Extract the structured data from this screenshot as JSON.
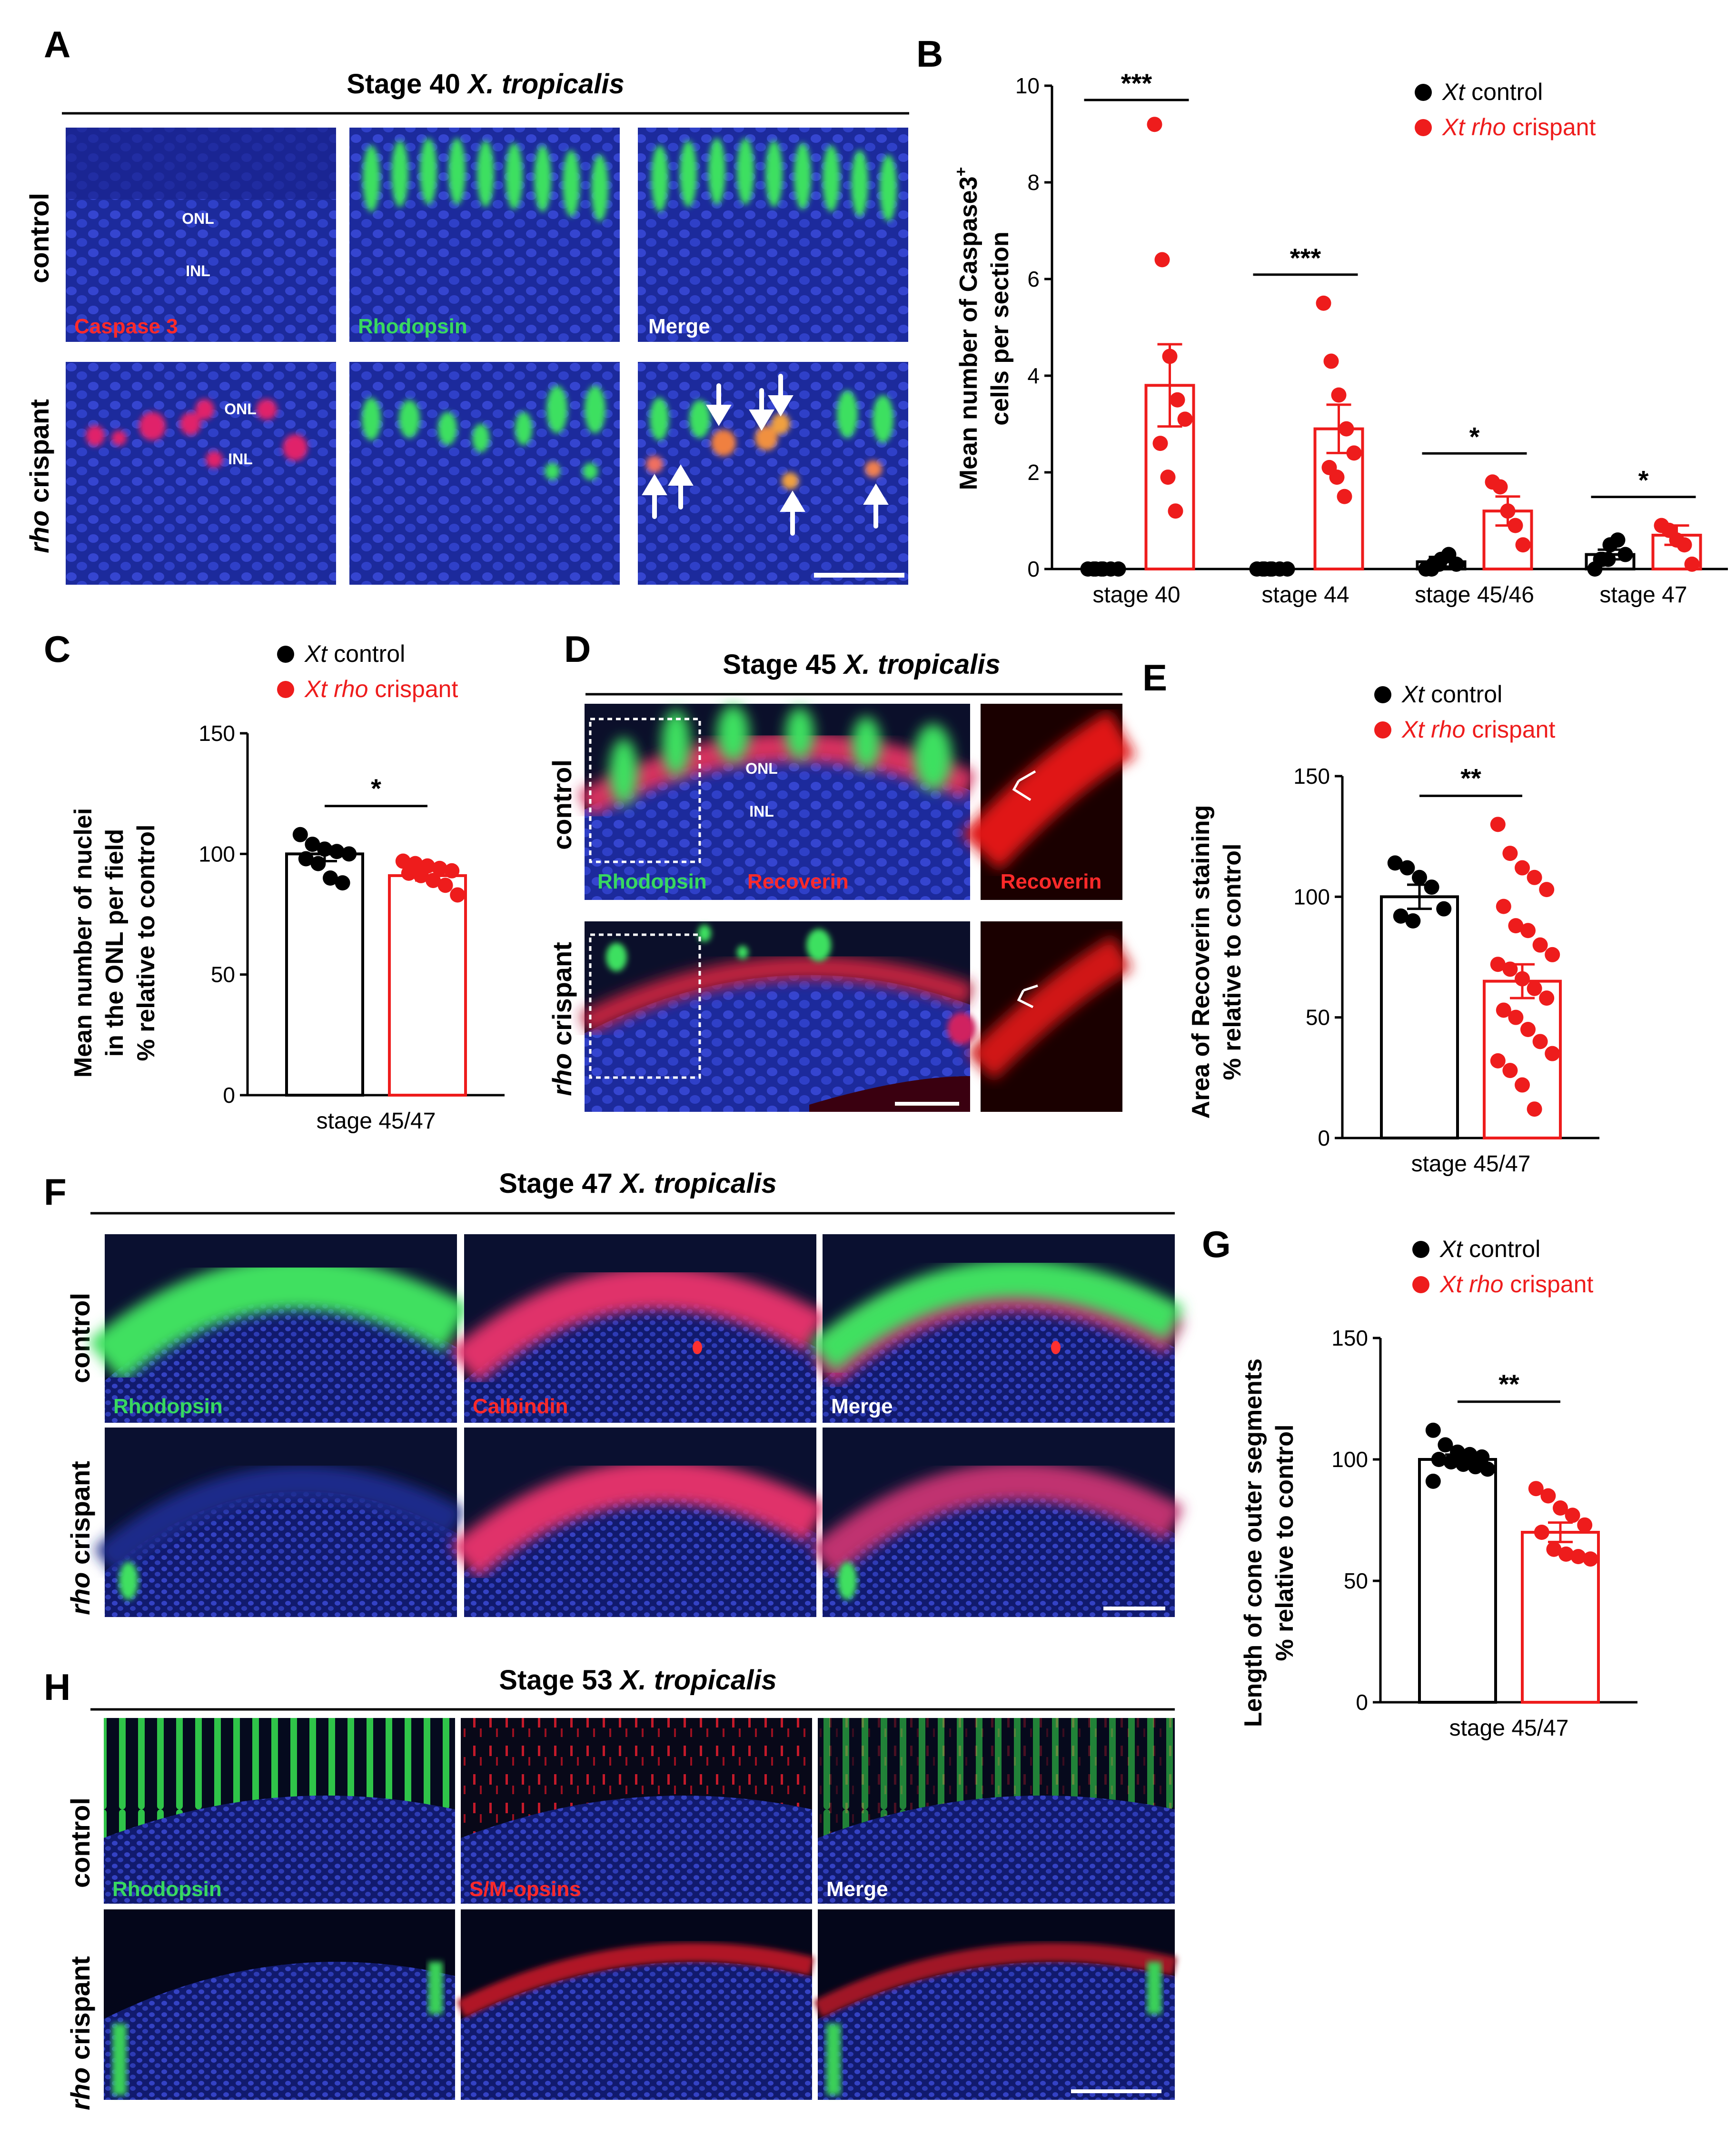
{
  "panels": {
    "A": {
      "letter": "A",
      "title_main": "Stage 40 ",
      "title_species": "X. tropicalis",
      "row_labels": [
        "control",
        "rho",
        " crispant"
      ],
      "stain_labels": [
        "Caspase 3",
        "Rhodopsin",
        "Merge"
      ],
      "layer_labels": [
        "ONL",
        "INL",
        "ONL",
        "INL"
      ]
    },
    "C": {
      "letter": "C",
      "ylabel_lines": [
        "Mean number of nuclei",
        "in the ONL per field",
        "% relative to control"
      ]
    },
    "D": {
      "letter": "D",
      "title_main": "Stage 45 ",
      "title_species": "X. tropicalis",
      "row_labels": [
        "control",
        "rho",
        " crispant"
      ],
      "stain_labels": [
        "Rhodopsin",
        "Recoverin",
        "Recoverin"
      ],
      "layer_labels": [
        "ONL",
        "INL"
      ]
    },
    "E": {
      "letter": "E",
      "ylabel_lines": [
        "Area of Recoverin staining",
        "% relative to control"
      ]
    },
    "F": {
      "letter": "F",
      "title_main": "Stage 47 ",
      "title_species": "X. tropicalis",
      "row_labels": [
        "control",
        "rho",
        " crispant"
      ],
      "stain_labels": [
        "Rhodopsin",
        "Calbindin",
        "Merge"
      ]
    },
    "G": {
      "letter": "G",
      "ylabel_lines": [
        "Length of cone outer segments",
        "% relative to control"
      ]
    },
    "H": {
      "letter": "H",
      "title_main": "Stage 53 ",
      "title_species": "X. tropicalis",
      "row_labels": [
        "control",
        "rho",
        " crispant"
      ],
      "stain_labels": [
        "Rhodopsin",
        "S/M-opsins",
        "Merge"
      ]
    }
  },
  "colors": {
    "control": "#000000",
    "crispant": "#ee1c1c",
    "green": "#37d957",
    "blue": "#2a37b8",
    "red": "#ff2020"
  },
  "chart_data": [
    {
      "panel": "B",
      "letter": "B",
      "type": "bar",
      "ylabel_lines": [
        "Mean number of Caspase3",
        "cells per section"
      ],
      "ylabel_sup": "+",
      "ylim": [
        0,
        10
      ],
      "yticks": [
        "0",
        "2",
        "4",
        "6",
        "8",
        "10"
      ],
      "categories": [
        "stage 40",
        "stage  44",
        "stage 45/46",
        "stage 47"
      ],
      "legend": {
        "control_prefix": "Xt",
        "control_suffix": " control",
        "crispant_prefix": "Xt rho",
        "crispant_suffix": " crispant"
      },
      "series": [
        {
          "name": "Xt control",
          "values": [
            0,
            0,
            0.15,
            0.3
          ],
          "sem": [
            0,
            0,
            0.1,
            0.1
          ],
          "points": [
            [
              0,
              0,
              0,
              0,
              0,
              0,
              0
            ],
            [
              0,
              0,
              0,
              0,
              0,
              0,
              0
            ],
            [
              0,
              0.1,
              0.2,
              0.3,
              0.1,
              0,
              0.1
            ],
            [
              0,
              0.2,
              0.5,
              0.6,
              0.3,
              0.2,
              0.2
            ]
          ]
        },
        {
          "name": "Xt rho crispant",
          "values": [
            3.8,
            2.9,
            1.2,
            0.7
          ],
          "sem": [
            0.85,
            0.5,
            0.3,
            0.2
          ],
          "points": [
            [
              9.2,
              6.4,
              4.4,
              3.5,
              3.1,
              2.6,
              1.9,
              1.2
            ],
            [
              5.5,
              4.3,
              3.6,
              2.9,
              2.4,
              2.1,
              1.9,
              1.5
            ],
            [
              1.8,
              1.7,
              1.2,
              0.9,
              0.5
            ],
            [
              0.9,
              0.8,
              0.6,
              0.5,
              0.1
            ]
          ]
        }
      ],
      "significance": [
        "***",
        "***",
        "*",
        "*"
      ]
    },
    {
      "panel": "C",
      "type": "bar",
      "ylim": [
        0,
        150
      ],
      "yticks": [
        "0",
        "50",
        "100",
        "150"
      ],
      "categories": [
        "stage 45/47"
      ],
      "legend": {
        "control_prefix": "Xt",
        "control_suffix": " control",
        "crispant_prefix": "Xt rho",
        "crispant_suffix": " crispant"
      },
      "series": [
        {
          "name": "Xt control",
          "values": [
            100
          ],
          "sem": [
            3
          ],
          "points": [
            108,
            104,
            102,
            101,
            100,
            98,
            96,
            90,
            88
          ]
        },
        {
          "name": "Xt rho crispant",
          "values": [
            91
          ],
          "sem": [
            2
          ],
          "points": [
            97,
            96,
            95,
            94,
            93,
            92,
            91,
            89,
            87,
            83
          ]
        }
      ],
      "significance": [
        "*"
      ]
    },
    {
      "panel": "E",
      "type": "bar",
      "ylim": [
        0,
        150
      ],
      "yticks": [
        "0",
        "50",
        "100",
        "150"
      ],
      "categories": [
        "stage 45/47"
      ],
      "legend": {
        "control_prefix": "Xt",
        "control_suffix": " control",
        "crispant_prefix": "Xt rho",
        "crispant_suffix": " crispant"
      },
      "series": [
        {
          "name": "Xt control",
          "values": [
            100
          ],
          "sem": [
            5
          ],
          "points": [
            114,
            112,
            108,
            104,
            95,
            92,
            90
          ]
        },
        {
          "name": "Xt rho crispant",
          "values": [
            65
          ],
          "sem": [
            7
          ],
          "points": [
            130,
            118,
            112,
            108,
            103,
            96,
            88,
            86,
            80,
            76,
            72,
            70,
            66,
            62,
            58,
            53,
            50,
            45,
            40,
            35,
            32,
            28,
            22,
            12
          ]
        }
      ],
      "significance": [
        "**"
      ]
    },
    {
      "panel": "G",
      "type": "bar",
      "ylim": [
        0,
        150
      ],
      "yticks": [
        "0",
        "50",
        "100",
        "150"
      ],
      "categories": [
        "stage 45/47"
      ],
      "legend": {
        "control_prefix": "Xt",
        "control_suffix": " control",
        "crispant_prefix": "Xt rho",
        "crispant_suffix": " crispant"
      },
      "series": [
        {
          "name": "Xt control",
          "values": [
            100
          ],
          "sem": [
            2
          ],
          "points": [
            112,
            106,
            103,
            102,
            101,
            100,
            99,
            98,
            97,
            96,
            91
          ]
        },
        {
          "name": "Xt rho crispant",
          "values": [
            70
          ],
          "sem": [
            4
          ],
          "points": [
            88,
            85,
            80,
            77,
            73,
            70,
            63,
            61,
            60,
            59
          ]
        }
      ],
      "significance": [
        "**"
      ]
    }
  ]
}
